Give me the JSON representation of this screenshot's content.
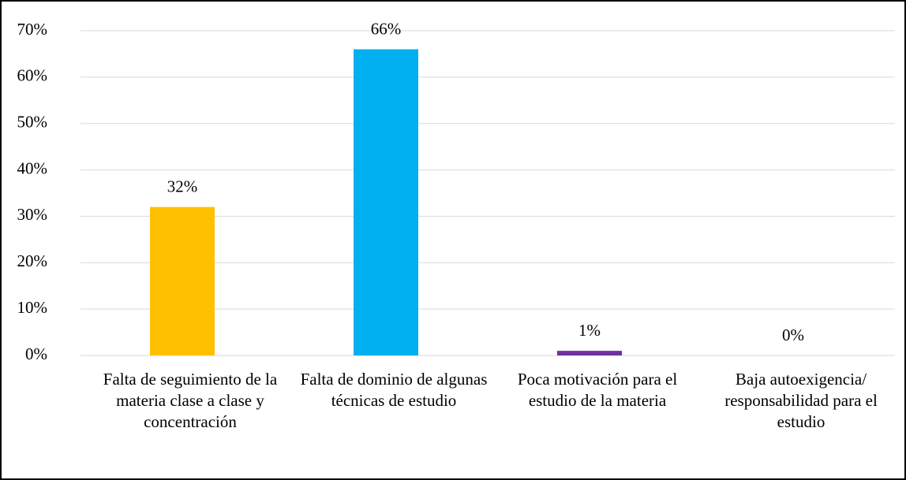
{
  "chart_data": {
    "type": "bar",
    "categories": [
      "Falta de seguimiento de la materia clase a clase y concentración",
      "Falta de dominio de algunas técnicas de estudio",
      "Poca motivación para el estudio de la materia",
      "Baja autoexigencia/ responsabilidad para el estudio"
    ],
    "values": [
      32,
      66,
      1,
      0
    ],
    "value_labels": [
      "32%",
      "66%",
      "1%",
      "0%"
    ],
    "colors": [
      "#ffc000",
      "#00b0f0",
      "#7030a0",
      "#a5a5a5"
    ],
    "ylim": [
      0,
      70
    ],
    "yticks": [
      {
        "value": 0,
        "label": "0%"
      },
      {
        "value": 10,
        "label": "10%"
      },
      {
        "value": 20,
        "label": "20%"
      },
      {
        "value": 30,
        "label": "30%"
      },
      {
        "value": 40,
        "label": "40%"
      },
      {
        "value": 50,
        "label": "50%"
      },
      {
        "value": 60,
        "label": "60%"
      },
      {
        "value": 70,
        "label": "70%"
      }
    ],
    "grid": true
  }
}
